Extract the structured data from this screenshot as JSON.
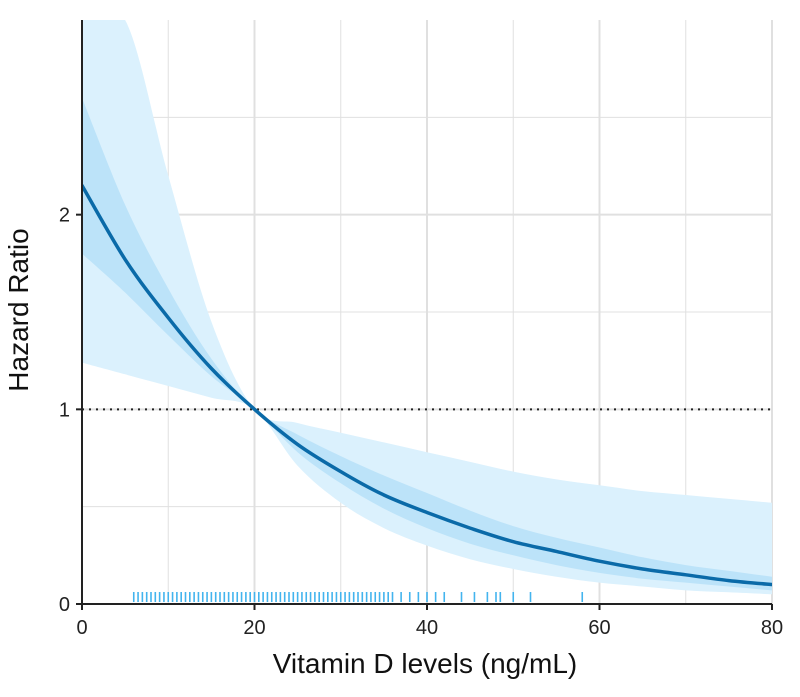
{
  "chart_data": {
    "type": "line",
    "title": "",
    "xlabel": "Vitamin D levels (ng/mL)",
    "ylabel": "Hazard Ratio",
    "xlim": [
      0,
      80
    ],
    "ylim": [
      0,
      3
    ],
    "x_ticks": [
      0,
      20,
      40,
      60,
      80
    ],
    "x_tick_labels": [
      "0",
      "20",
      "40",
      "60",
      "80"
    ],
    "y_ticks": [
      0,
      1,
      2
    ],
    "y_tick_labels": [
      "0",
      "1",
      "2"
    ],
    "grid": true,
    "reference_line": {
      "y": 1,
      "style": "dotted"
    },
    "series": [
      {
        "name": "Hazard Ratio",
        "x": [
          0,
          5,
          10,
          15,
          20,
          25,
          30,
          35,
          40,
          45,
          50,
          55,
          60,
          65,
          70,
          75,
          80
        ],
        "y": [
          2.15,
          1.77,
          1.47,
          1.21,
          1.0,
          0.82,
          0.68,
          0.56,
          0.47,
          0.39,
          0.32,
          0.27,
          0.22,
          0.18,
          0.15,
          0.12,
          0.1
        ]
      }
    ],
    "confidence_bands": [
      {
        "name": "inner band",
        "x": [
          0,
          5,
          10,
          15,
          20,
          25,
          30,
          35,
          40,
          45,
          50,
          55,
          60,
          65,
          70,
          75,
          80
        ],
        "lower": [
          1.8,
          1.6,
          1.38,
          1.17,
          1.0,
          0.78,
          0.62,
          0.49,
          0.39,
          0.31,
          0.25,
          0.2,
          0.16,
          0.13,
          0.11,
          0.09,
          0.07
        ],
        "upper": [
          2.6,
          2.05,
          1.62,
          1.26,
          1.0,
          0.87,
          0.76,
          0.66,
          0.57,
          0.48,
          0.4,
          0.34,
          0.29,
          0.24,
          0.2,
          0.17,
          0.14
        ]
      },
      {
        "name": "outer band",
        "x": [
          0,
          5,
          10,
          15,
          20,
          25,
          30,
          35,
          40,
          45,
          50,
          55,
          60,
          65,
          70,
          75,
          80
        ],
        "lower": [
          1.24,
          1.18,
          1.12,
          1.06,
          1.0,
          0.71,
          0.52,
          0.39,
          0.3,
          0.23,
          0.18,
          0.14,
          0.11,
          0.09,
          0.07,
          0.06,
          0.05
        ],
        "upper": [
          3.0,
          3.0,
          2.2,
          1.45,
          1.0,
          0.93,
          0.88,
          0.83,
          0.78,
          0.73,
          0.68,
          0.64,
          0.61,
          0.58,
          0.56,
          0.54,
          0.52
        ]
      }
    ],
    "rug": [
      6,
      6.5,
      7,
      7.5,
      8,
      8.5,
      9,
      9.5,
      10,
      10.5,
      11,
      11.5,
      12,
      12.5,
      13,
      13.5,
      14,
      14.5,
      15,
      15.5,
      16,
      16.5,
      17,
      17.5,
      18,
      18.5,
      19,
      19.5,
      20,
      20.5,
      21,
      21.5,
      22,
      22.5,
      23,
      23.5,
      24,
      24.5,
      25,
      25.5,
      26,
      26.5,
      27,
      27.5,
      28,
      28.5,
      29,
      29.5,
      30,
      30.5,
      31,
      31.5,
      32,
      32.5,
      33,
      33.5,
      34,
      34.5,
      35,
      35.5,
      36,
      37,
      38,
      39,
      40,
      41,
      42,
      44,
      45.5,
      47,
      48,
      48.5,
      50,
      52,
      58
    ],
    "colors": {
      "line": "#0a6aa8",
      "inner_band": "#b6e1f8",
      "outer_band": "#dbf1fd",
      "rug": "#43b4ee",
      "grid": "#e0e0e0",
      "reference": "#222222",
      "axis": "#222222"
    }
  }
}
